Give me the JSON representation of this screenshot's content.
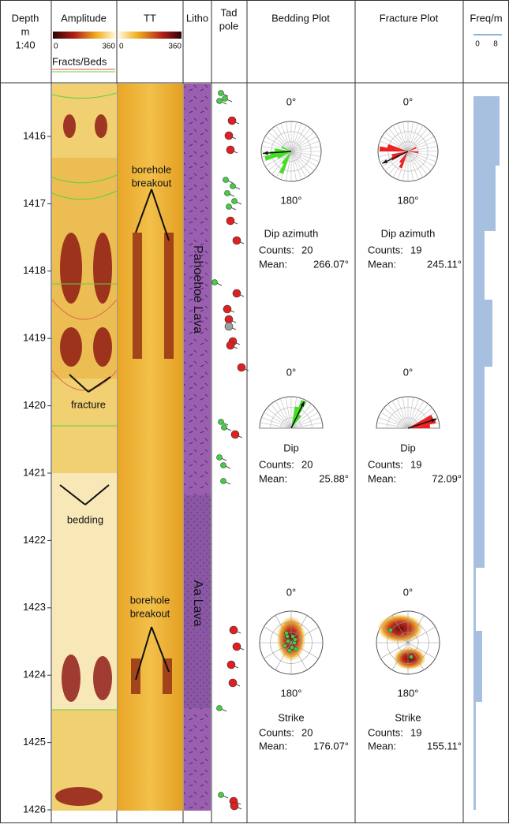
{
  "header": {
    "depth": [
      "Depth",
      "m",
      "1:40"
    ],
    "amplitude": "Amplitude",
    "amp_scale": [
      "0",
      "360"
    ],
    "tt": "TT",
    "tt_scale": [
      "0",
      "360"
    ],
    "fracts_beds": "Fracts/Beds",
    "litho": "Litho",
    "tadpole": [
      "Tad",
      "pole"
    ],
    "bedding": "Bedding Plot",
    "fracture": "Fracture Plot",
    "freq": "Freq/m",
    "freq_scale": [
      "0",
      "8"
    ]
  },
  "depths": [
    "1416",
    "1417",
    "1418",
    "1419",
    "1420",
    "1421",
    "1422",
    "1423",
    "1424",
    "1425",
    "1426"
  ],
  "annotations": {
    "breakout_upper": [
      "borehole",
      "breakout"
    ],
    "breakout_lower": [
      "borehole",
      "breakout"
    ],
    "fracture": "fracture",
    "bedding": "bedding"
  },
  "litho": [
    "Pahoehoe Lava",
    "Aa Lava"
  ],
  "plots": {
    "bedding": [
      {
        "north": "0°",
        "south": "180°",
        "title": "Dip azimuth",
        "counts_label": "Counts:",
        "counts": "20",
        "mean_label": "Mean:",
        "mean": "266.07°"
      },
      {
        "north": "0°",
        "title": "Dip",
        "counts_label": "Counts:",
        "counts": "20",
        "mean_label": "Mean:",
        "mean": "25.88°"
      },
      {
        "north": "0°",
        "south": "180°",
        "title": "Strike",
        "counts_label": "Counts:",
        "counts": "20",
        "mean_label": "Mean:",
        "mean": "176.07°"
      }
    ],
    "fracture": [
      {
        "north": "0°",
        "south": "180°",
        "title": "Dip azimuth",
        "counts_label": "Counts:",
        "counts": "19",
        "mean_label": "Mean:",
        "mean": "245.11°"
      },
      {
        "north": "0°",
        "title": "Dip",
        "counts_label": "Counts:",
        "counts": "19",
        "mean_label": "Mean:",
        "mean": "72.09°"
      },
      {
        "north": "0°",
        "south": "180°",
        "title": "Strike",
        "counts_label": "Counts:",
        "counts": "19",
        "mean_label": "Mean:",
        "mean": "155.11°"
      }
    ]
  }
}
